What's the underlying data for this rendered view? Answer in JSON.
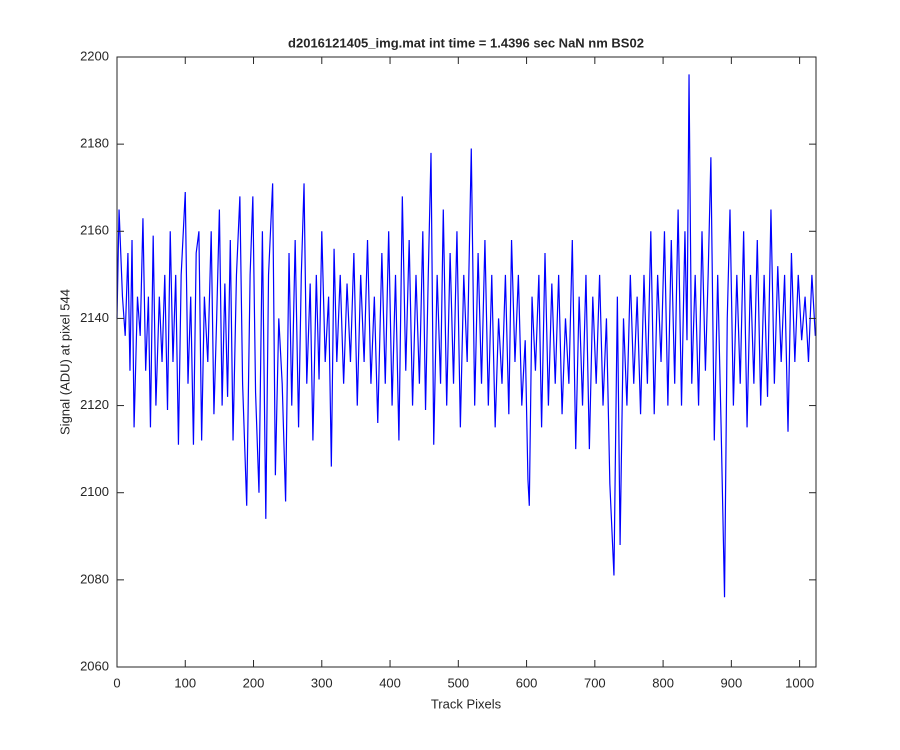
{
  "chart_data": {
    "type": "line",
    "title": "d2016121405_img.mat int time = 1.4396 sec  NaN nm BS02",
    "x_label": "Track Pixels",
    "y_label": "Signal (ADU) at pixel 544",
    "xlim": [
      0,
      1024
    ],
    "ylim": [
      2060,
      2200
    ],
    "xticks": [
      0,
      100,
      200,
      300,
      400,
      500,
      600,
      700,
      800,
      900,
      1000
    ],
    "yticks": [
      2060,
      2080,
      2100,
      2120,
      2140,
      2160,
      2180,
      2200
    ],
    "grid": false,
    "x": [
      0,
      3,
      8,
      12,
      16,
      19,
      22,
      25,
      30,
      34,
      38,
      42,
      46,
      49,
      53,
      57,
      62,
      66,
      70,
      74,
      78,
      82,
      86,
      90,
      94,
      100,
      104,
      108,
      112,
      116,
      120,
      124,
      128,
      133,
      138,
      142,
      146,
      150,
      154,
      158,
      162,
      166,
      170,
      175,
      180,
      184,
      190,
      195,
      199,
      203,
      208,
      213,
      218,
      222,
      228,
      232,
      237,
      242,
      247,
      252,
      256,
      261,
      266,
      270,
      274,
      278,
      283,
      287,
      292,
      296,
      300,
      305,
      310,
      314,
      318,
      322,
      327,
      332,
      337,
      342,
      347,
      352,
      357,
      362,
      367,
      372,
      377,
      382,
      388,
      393,
      398,
      403,
      408,
      413,
      418,
      423,
      428,
      433,
      438,
      443,
      448,
      452,
      456,
      460,
      464,
      469,
      474,
      478,
      483,
      488,
      493,
      498,
      503,
      508,
      513,
      519,
      524,
      529,
      534,
      539,
      544,
      549,
      554,
      559,
      564,
      569,
      574,
      578,
      583,
      588,
      593,
      598,
      602,
      604,
      608,
      613,
      618,
      622,
      627,
      632,
      637,
      642,
      647,
      652,
      657,
      662,
      667,
      672,
      677,
      682,
      687,
      692,
      697,
      702,
      707,
      712,
      717,
      722,
      728,
      733,
      737,
      742,
      747,
      752,
      757,
      762,
      767,
      772,
      777,
      782,
      787,
      792,
      797,
      802,
      807,
      812,
      817,
      822,
      827,
      832,
      835,
      838,
      842,
      847,
      852,
      857,
      862,
      866,
      870,
      875,
      880,
      885,
      890,
      894,
      898,
      903,
      908,
      913,
      918,
      923,
      928,
      933,
      938,
      943,
      948,
      953,
      958,
      963,
      968,
      973,
      978,
      983,
      988,
      993,
      998,
      1003,
      1008,
      1013,
      1018,
      1023
    ],
    "series": [
      {
        "color": "#0000ff",
        "values": [
          2140,
          2165,
          2145,
          2136,
          2155,
          2128,
          2158,
          2115,
          2145,
          2136,
          2163,
          2128,
          2145,
          2115,
          2159,
          2120,
          2145,
          2130,
          2150,
          2119,
          2160,
          2130,
          2150,
          2111,
          2150,
          2169,
          2125,
          2145,
          2111,
          2155,
          2160,
          2112,
          2145,
          2130,
          2160,
          2118,
          2140,
          2165,
          2120,
          2148,
          2122,
          2158,
          2112,
          2150,
          2168,
          2125,
          2097,
          2150,
          2168,
          2123,
          2100,
          2160,
          2094,
          2150,
          2171,
          2104,
          2140,
          2125,
          2098,
          2155,
          2120,
          2158,
          2115,
          2150,
          2171,
          2125,
          2148,
          2112,
          2150,
          2126,
          2160,
          2130,
          2145,
          2106,
          2156,
          2130,
          2150,
          2125,
          2148,
          2130,
          2155,
          2120,
          2150,
          2130,
          2158,
          2125,
          2145,
          2116,
          2155,
          2125,
          2160,
          2120,
          2150,
          2112,
          2168,
          2128,
          2158,
          2120,
          2150,
          2125,
          2160,
          2119,
          2150,
          2178,
          2111,
          2150,
          2125,
          2165,
          2120,
          2155,
          2125,
          2160,
          2115,
          2150,
          2130,
          2179,
          2120,
          2155,
          2125,
          2158,
          2120,
          2150,
          2115,
          2140,
          2125,
          2150,
          2118,
          2158,
          2130,
          2150,
          2120,
          2135,
          2103,
          2097,
          2145,
          2128,
          2150,
          2115,
          2155,
          2120,
          2148,
          2125,
          2150,
          2118,
          2140,
          2125,
          2158,
          2110,
          2145,
          2120,
          2150,
          2110,
          2145,
          2125,
          2150,
          2120,
          2140,
          2102,
          2081,
          2145,
          2088,
          2140,
          2120,
          2150,
          2125,
          2145,
          2118,
          2150,
          2125,
          2160,
          2118,
          2150,
          2130,
          2160,
          2120,
          2158,
          2125,
          2165,
          2120,
          2160,
          2135,
          2196,
          2125,
          2150,
          2120,
          2160,
          2128,
          2150,
          2177,
          2112,
          2150,
          2115,
          2076,
          2140,
          2165,
          2120,
          2150,
          2125,
          2160,
          2115,
          2150,
          2125,
          2158,
          2120,
          2150,
          2122,
          2165,
          2125,
          2152,
          2130,
          2150,
          2114,
          2155,
          2130,
          2150,
          2135,
          2145,
          2130,
          2150,
          2136
        ]
      }
    ]
  }
}
